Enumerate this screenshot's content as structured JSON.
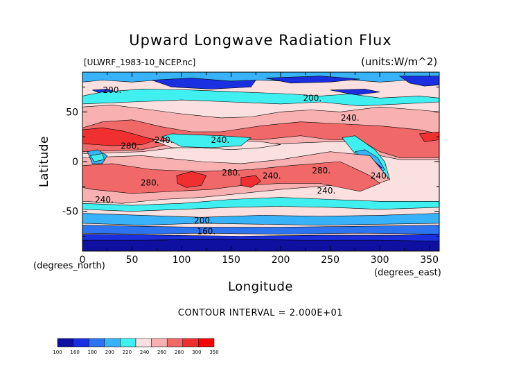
{
  "chart_data": {
    "type": "heatmap",
    "title": "Upward Longwave Radiation Flux",
    "subtitle_left": "[ULWRF_1983-10_NCEP.nc]",
    "subtitle_right": "(units:W/m^2)",
    "xlabel": "Longitude",
    "ylabel": "Latitude",
    "x_unit_label": "(degrees_east)",
    "y_unit_label": "(degrees_north)",
    "xlim": [
      0,
      360
    ],
    "ylim": [
      -90,
      90
    ],
    "xticks": [
      0,
      50,
      100,
      150,
      200,
      250,
      300,
      350
    ],
    "yticks": [
      -50,
      0,
      50
    ],
    "contour_interval_text": "CONTOUR INTERVAL = 2.000E+01",
    "levels": [
      100,
      160,
      180,
      200,
      220,
      240,
      260,
      280,
      300,
      350
    ],
    "colors": [
      "#1010a0",
      "#1a30e0",
      "#2c74f0",
      "#38b2f8",
      "#40f0f0",
      "#fbe0e0",
      "#f8b0b0",
      "#f06868",
      "#f03030",
      "#ff0000"
    ],
    "contour_labels": [
      {
        "text": "200.",
        "lon": 30,
        "lat": 69
      },
      {
        "text": "200.",
        "lon": 232,
        "lat": 61
      },
      {
        "text": "240.",
        "lon": 270,
        "lat": 41
      },
      {
        "text": "280.",
        "lon": 48,
        "lat": 13
      },
      {
        "text": "240.",
        "lon": 82,
        "lat": 19
      },
      {
        "text": "240.",
        "lon": 139,
        "lat": 19
      },
      {
        "text": "280.",
        "lon": 241,
        "lat": -12
      },
      {
        "text": "240.",
        "lon": 191,
        "lat": -17
      },
      {
        "text": "280.",
        "lon": 150,
        "lat": -14
      },
      {
        "text": "280.",
        "lon": 68,
        "lat": -24
      },
      {
        "text": "240.",
        "lon": 246,
        "lat": -32
      },
      {
        "text": "240.",
        "lon": 300,
        "lat": -17
      },
      {
        "text": "240.",
        "lon": 22,
        "lat": -41
      },
      {
        "text": "200.",
        "lon": 122,
        "lat": -62
      },
      {
        "text": "160.",
        "lon": 125,
        "lat": -73
      }
    ],
    "regions": [
      {
        "level": 0,
        "pts": [
          [
            0,
            -90
          ],
          [
            360,
            -90
          ],
          [
            360,
            -78
          ],
          [
            320,
            -77
          ],
          [
            260,
            -79
          ],
          [
            200,
            -78
          ],
          [
            140,
            -77
          ],
          [
            80,
            -79
          ],
          [
            30,
            -77
          ],
          [
            0,
            -78
          ]
        ]
      },
      {
        "level": 3,
        "pts": [
          [
            0,
            90
          ],
          [
            360,
            90
          ],
          [
            360,
            79
          ],
          [
            330,
            82
          ],
          [
            300,
            80
          ],
          [
            260,
            83
          ],
          [
            220,
            80
          ],
          [
            180,
            82
          ],
          [
            140,
            80
          ],
          [
            90,
            83
          ],
          [
            50,
            80
          ],
          [
            20,
            82
          ],
          [
            0,
            80
          ]
        ]
      },
      {
        "level": 1,
        "pts": [
          [
            70,
            82
          ],
          [
            110,
            84
          ],
          [
            150,
            81
          ],
          [
            175,
            82
          ],
          [
            170,
            75
          ],
          [
            130,
            73
          ],
          [
            90,
            75
          ]
        ]
      },
      {
        "level": 1,
        "pts": [
          [
            320,
            86
          ],
          [
            360,
            86
          ],
          [
            360,
            77
          ],
          [
            345,
            76
          ],
          [
            330,
            79
          ]
        ]
      },
      {
        "level": 1,
        "pts": [
          [
            10,
            72
          ],
          [
            25,
            73
          ],
          [
            35,
            70
          ],
          [
            20,
            68
          ]
        ]
      },
      {
        "level": 1,
        "pts": [
          [
            250,
            72
          ],
          [
            285,
            73
          ],
          [
            300,
            70
          ],
          [
            275,
            67
          ]
        ]
      },
      {
        "level": 1,
        "pts": [
          [
            185,
            84
          ],
          [
            240,
            86
          ],
          [
            280,
            83
          ],
          [
            250,
            80
          ],
          [
            210,
            79
          ]
        ]
      },
      {
        "level": 4,
        "pts": [
          [
            0,
            66
          ],
          [
            20,
            70
          ],
          [
            60,
            73
          ],
          [
            110,
            72
          ],
          [
            160,
            70
          ],
          [
            210,
            68
          ],
          [
            240,
            66
          ],
          [
            270,
            68
          ],
          [
            300,
            64
          ],
          [
            340,
            66
          ],
          [
            360,
            64
          ],
          [
            360,
            60
          ],
          [
            320,
            58
          ],
          [
            280,
            56
          ],
          [
            240,
            60
          ],
          [
            200,
            58
          ],
          [
            150,
            60
          ],
          [
            100,
            62
          ],
          [
            50,
            60
          ],
          [
            0,
            58
          ]
        ]
      },
      {
        "level": 6,
        "pts": [
          [
            0,
            55
          ],
          [
            30,
            57
          ],
          [
            70,
            52
          ],
          [
            100,
            48
          ],
          [
            140,
            44
          ],
          [
            170,
            45
          ],
          [
            200,
            50
          ],
          [
            230,
            52
          ],
          [
            260,
            50
          ],
          [
            300,
            55
          ],
          [
            340,
            52
          ],
          [
            360,
            50
          ],
          [
            360,
            2
          ],
          [
            320,
            2
          ],
          [
            290,
            8
          ],
          [
            270,
            20
          ],
          [
            250,
            20
          ],
          [
            200,
            18
          ],
          [
            160,
            18
          ],
          [
            120,
            17
          ],
          [
            60,
            10
          ],
          [
            0,
            8
          ]
        ]
      },
      {
        "level": 7,
        "pts": [
          [
            0,
            34
          ],
          [
            20,
            40
          ],
          [
            50,
            42
          ],
          [
            80,
            35
          ],
          [
            110,
            30
          ],
          [
            140,
            30
          ],
          [
            180,
            36
          ],
          [
            220,
            40
          ],
          [
            260,
            38
          ],
          [
            300,
            36
          ],
          [
            340,
            32
          ],
          [
            360,
            28
          ],
          [
            360,
            4
          ],
          [
            320,
            4
          ],
          [
            300,
            10
          ],
          [
            280,
            22
          ],
          [
            250,
            22
          ],
          [
            220,
            26
          ],
          [
            180,
            22
          ],
          [
            140,
            22
          ],
          [
            100,
            20
          ],
          [
            60,
            12
          ],
          [
            0,
            10
          ]
        ]
      },
      {
        "level": 8,
        "pts": [
          [
            0,
            32
          ],
          [
            20,
            34
          ],
          [
            40,
            31
          ],
          [
            65,
            24
          ],
          [
            75,
            22
          ],
          [
            60,
            17
          ],
          [
            30,
            16
          ],
          [
            0,
            18
          ]
        ]
      },
      {
        "level": 5,
        "pts": [
          [
            70,
            22
          ],
          [
            100,
            20
          ],
          [
            140,
            22
          ],
          [
            180,
            20
          ],
          [
            200,
            17
          ],
          [
            180,
            14
          ],
          [
            150,
            12
          ],
          [
            120,
            14
          ],
          [
            90,
            14
          ]
        ]
      },
      {
        "level": 4,
        "pts": [
          [
            80,
            25
          ],
          [
            90,
            28
          ],
          [
            140,
            26
          ],
          [
            170,
            24
          ],
          [
            160,
            16
          ],
          [
            130,
            14
          ],
          [
            100,
            15
          ]
        ]
      },
      {
        "level": 4,
        "pts": [
          [
            262,
            24
          ],
          [
            275,
            26
          ],
          [
            295,
            12
          ],
          [
            305,
            0
          ],
          [
            310,
            -18
          ],
          [
            300,
            -21
          ],
          [
            290,
            -8
          ],
          [
            275,
            8
          ]
        ]
      },
      {
        "level": 3,
        "pts": [
          [
            275,
            10
          ],
          [
            285,
            12
          ],
          [
            298,
            4
          ],
          [
            305,
            -8
          ],
          [
            298,
            -12
          ],
          [
            290,
            -4
          ]
        ]
      },
      {
        "level": 1,
        "pts": [
          [
            285,
            4
          ],
          [
            295,
            0
          ],
          [
            302,
            -6
          ],
          [
            298,
            -10
          ],
          [
            290,
            -6
          ]
        ]
      },
      {
        "level": 8,
        "pts": [
          [
            340,
            28
          ],
          [
            360,
            30
          ],
          [
            360,
            22
          ],
          [
            345,
            20
          ]
        ]
      },
      {
        "level": 6,
        "pts": [
          [
            0,
            4
          ],
          [
            60,
            6
          ],
          [
            120,
            0
          ],
          [
            160,
            -2
          ],
          [
            200,
            2
          ],
          [
            250,
            10
          ],
          [
            290,
            6
          ],
          [
            310,
            -18
          ],
          [
            280,
            -28
          ],
          [
            250,
            -24
          ],
          [
            200,
            -28
          ],
          [
            160,
            -32
          ],
          [
            120,
            -36
          ],
          [
            80,
            -38
          ],
          [
            40,
            -42
          ],
          [
            0,
            -40
          ]
        ]
      },
      {
        "level": 7,
        "pts": [
          [
            0,
            -4
          ],
          [
            30,
            -2
          ],
          [
            70,
            -8
          ],
          [
            120,
            -10
          ],
          [
            170,
            -8
          ],
          [
            210,
            -4
          ],
          [
            260,
            0
          ],
          [
            290,
            -14
          ],
          [
            300,
            -22
          ],
          [
            280,
            -30
          ],
          [
            240,
            -22
          ],
          [
            200,
            -22
          ],
          [
            160,
            -24
          ],
          [
            130,
            -28
          ],
          [
            90,
            -30
          ],
          [
            50,
            -32
          ],
          [
            10,
            -28
          ],
          [
            0,
            -26
          ]
        ]
      },
      {
        "level": 8,
        "pts": [
          [
            95,
            -14
          ],
          [
            110,
            -10
          ],
          [
            125,
            -14
          ],
          [
            120,
            -24
          ],
          [
            105,
            -26
          ],
          [
            96,
            -22
          ]
        ]
      },
      {
        "level": 8,
        "pts": [
          [
            160,
            -16
          ],
          [
            175,
            -14
          ],
          [
            180,
            -20
          ],
          [
            170,
            -26
          ],
          [
            160,
            -24
          ]
        ]
      },
      {
        "level": 3,
        "pts": [
          [
            5,
            10
          ],
          [
            15,
            12
          ],
          [
            25,
            6
          ],
          [
            20,
            -2
          ],
          [
            10,
            -2
          ]
        ]
      },
      {
        "level": 4,
        "pts": [
          [
            8,
            6
          ],
          [
            20,
            8
          ],
          [
            22,
            2
          ],
          [
            12,
            0
          ]
        ]
      },
      {
        "level": 4,
        "pts": [
          [
            0,
            -42
          ],
          [
            50,
            -44
          ],
          [
            100,
            -42
          ],
          [
            150,
            -38
          ],
          [
            200,
            -36
          ],
          [
            250,
            -38
          ],
          [
            300,
            -40
          ],
          [
            360,
            -40
          ],
          [
            360,
            -46
          ],
          [
            300,
            -48
          ],
          [
            250,
            -46
          ],
          [
            200,
            -45
          ],
          [
            150,
            -46
          ],
          [
            100,
            -48
          ],
          [
            50,
            -50
          ],
          [
            0,
            -48
          ]
        ]
      },
      {
        "level": 3,
        "pts": [
          [
            0,
            -52
          ],
          [
            60,
            -54
          ],
          [
            120,
            -56
          ],
          [
            180,
            -54
          ],
          [
            240,
            -55
          ],
          [
            300,
            -54
          ],
          [
            360,
            -52
          ],
          [
            360,
            -62
          ],
          [
            300,
            -63
          ],
          [
            240,
            -64
          ],
          [
            180,
            -63
          ],
          [
            120,
            -62
          ],
          [
            60,
            -64
          ],
          [
            0,
            -62
          ]
        ]
      },
      {
        "level": 2,
        "pts": [
          [
            0,
            -64
          ],
          [
            60,
            -65
          ],
          [
            120,
            -66
          ],
          [
            200,
            -66
          ],
          [
            280,
            -65
          ],
          [
            360,
            -64
          ],
          [
            360,
            -73
          ],
          [
            280,
            -72
          ],
          [
            200,
            -73
          ],
          [
            120,
            -72
          ],
          [
            60,
            -73
          ],
          [
            0,
            -72
          ]
        ]
      },
      {
        "level": 1,
        "pts": [
          [
            0,
            -73
          ],
          [
            80,
            -74
          ],
          [
            160,
            -75
          ],
          [
            240,
            -74
          ],
          [
            320,
            -74
          ],
          [
            360,
            -73
          ],
          [
            360,
            -80
          ],
          [
            300,
            -79
          ],
          [
            220,
            -79
          ],
          [
            140,
            -78
          ],
          [
            60,
            -79
          ],
          [
            0,
            -79
          ]
        ]
      }
    ]
  }
}
